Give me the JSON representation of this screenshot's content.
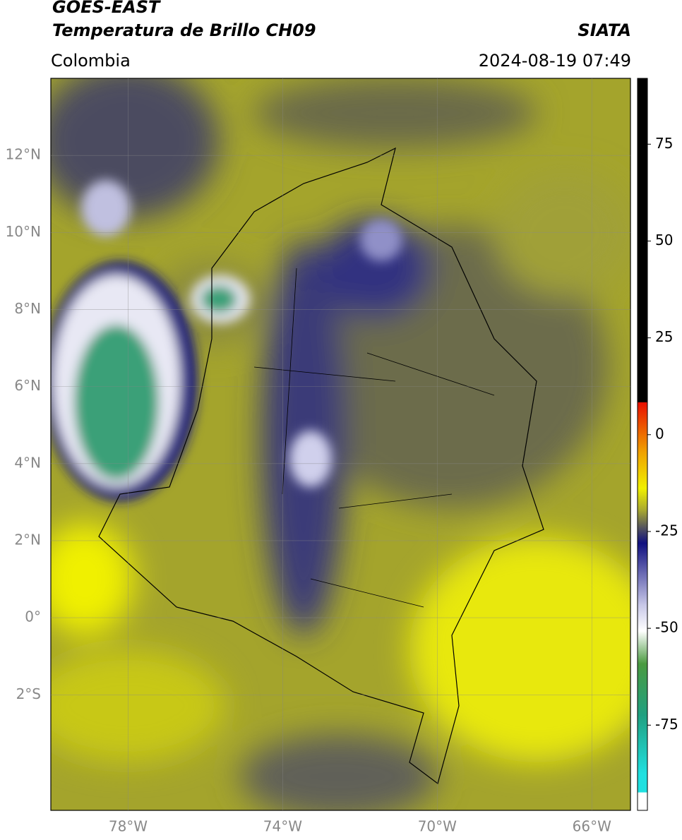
{
  "header": {
    "satellite": "GOES-EAST",
    "product": "Temperatura de Brillo CH09",
    "source": "SIATA",
    "region": "Colombia",
    "timestamp": "2024-08-19 07:49"
  },
  "map": {
    "lon_range": [
      -80,
      -65
    ],
    "lat_range": [
      -5,
      14
    ],
    "lon_ticks": [
      {
        "value": -78,
        "label": "78°W"
      },
      {
        "value": -74,
        "label": "74°W"
      },
      {
        "value": -70,
        "label": "70°W"
      },
      {
        "value": -66,
        "label": "66°W"
      }
    ],
    "lat_ticks": [
      {
        "value": 12,
        "label": "12°N"
      },
      {
        "value": 10,
        "label": "10°N"
      },
      {
        "value": 8,
        "label": "8°N"
      },
      {
        "value": 6,
        "label": "6°N"
      },
      {
        "value": 4,
        "label": "4°N"
      },
      {
        "value": 2,
        "label": "2°N"
      },
      {
        "value": 0,
        "label": "0°"
      },
      {
        "value": -2,
        "label": "2°S"
      }
    ]
  },
  "colorbar": {
    "range": [
      -97,
      92
    ],
    "ticks": [
      75,
      50,
      25,
      0,
      -25,
      -50,
      -75
    ]
  }
}
